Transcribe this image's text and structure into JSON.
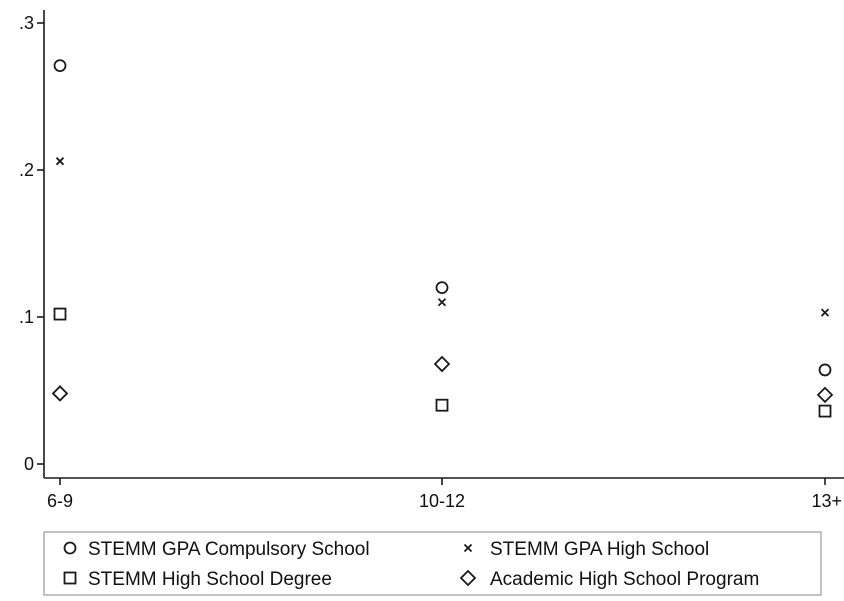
{
  "chart_data": {
    "type": "scatter",
    "title": "",
    "xlabel": "",
    "ylabel": "",
    "categories": [
      "6-9",
      "10-12",
      "13+"
    ],
    "ylim": [
      0,
      0.3
    ],
    "yticks": [
      0,
      0.1,
      0.2,
      0.3
    ],
    "ytick_labels": [
      "0",
      ".1",
      ".2",
      ".3"
    ],
    "grid": false,
    "legend_position": "bottom",
    "series": [
      {
        "name": "STEMM GPA Compulsory School",
        "marker": "circle",
        "values": [
          0.271,
          0.12,
          0.064
        ]
      },
      {
        "name": "STEMM GPA High School",
        "marker": "x",
        "values": [
          0.206,
          0.11,
          0.103
        ]
      },
      {
        "name": "STEMM High School Degree",
        "marker": "square",
        "values": [
          0.102,
          0.04,
          0.036
        ]
      },
      {
        "name": "Academic High School Program",
        "marker": "diamond",
        "values": [
          0.048,
          0.068,
          0.047
        ]
      }
    ],
    "colors": {
      "axis": "#1a1a1a",
      "marker": "#1a1a1a",
      "legend_border": "#9a9a9a"
    }
  }
}
